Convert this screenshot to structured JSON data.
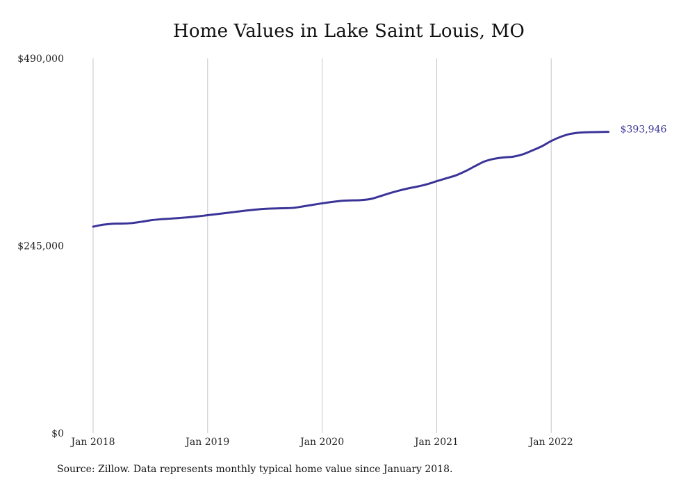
{
  "chart_data": {
    "type": "line",
    "title": "Home Values in Lake Saint Louis, MO",
    "xlabel": "",
    "ylabel": "",
    "x_tick_labels": [
      "Jan 2018",
      "Jan 2019",
      "Jan 2020",
      "Jan 2021",
      "Jan 2022"
    ],
    "y_tick_labels": [
      "$0",
      "$245,000",
      "$490,000"
    ],
    "y_ticks": [
      0,
      245000,
      490000
    ],
    "ylim": [
      0,
      490000
    ],
    "x_start": "2018-01",
    "x_end": "2022-07",
    "grid": "vertical",
    "legend": "none",
    "series": [
      {
        "name": "",
        "color": "#3b3498",
        "x": [
          "2018-01",
          "2018-02",
          "2018-03",
          "2018-04",
          "2018-05",
          "2018-06",
          "2018-07",
          "2018-08",
          "2018-09",
          "2018-10",
          "2018-11",
          "2018-12",
          "2019-01",
          "2019-02",
          "2019-03",
          "2019-04",
          "2019-05",
          "2019-06",
          "2019-07",
          "2019-08",
          "2019-09",
          "2019-10",
          "2019-11",
          "2019-12",
          "2020-01",
          "2020-02",
          "2020-03",
          "2020-04",
          "2020-05",
          "2020-06",
          "2020-07",
          "2020-08",
          "2020-09",
          "2020-10",
          "2020-11",
          "2020-12",
          "2021-01",
          "2021-02",
          "2021-03",
          "2021-04",
          "2021-05",
          "2021-06",
          "2021-07",
          "2021-08",
          "2021-09",
          "2021-10",
          "2021-11",
          "2021-12",
          "2022-01",
          "2022-02",
          "2022-03",
          "2022-04",
          "2022-05",
          "2022-06",
          "2022-07"
        ],
        "values": [
          270000,
          272500,
          273800,
          274000,
          274600,
          276300,
          278300,
          279600,
          280400,
          281300,
          282300,
          283500,
          285000,
          286500,
          288000,
          289500,
          291000,
          292300,
          293300,
          293800,
          294100,
          294600,
          296500,
          298500,
          300500,
          302300,
          303800,
          304300,
          304700,
          306000,
          309500,
          313500,
          317000,
          320000,
          322500,
          325500,
          329500,
          333200,
          337000,
          342500,
          349000,
          355200,
          358700,
          360500,
          361500,
          364500,
          369500,
          375000,
          382000,
          387500,
          391300,
          393000,
          393500,
          393800,
          393946
        ]
      }
    ],
    "end_label": "$393,946",
    "source": "Source: Zillow. Data represents monthly typical home value since January 2018."
  }
}
